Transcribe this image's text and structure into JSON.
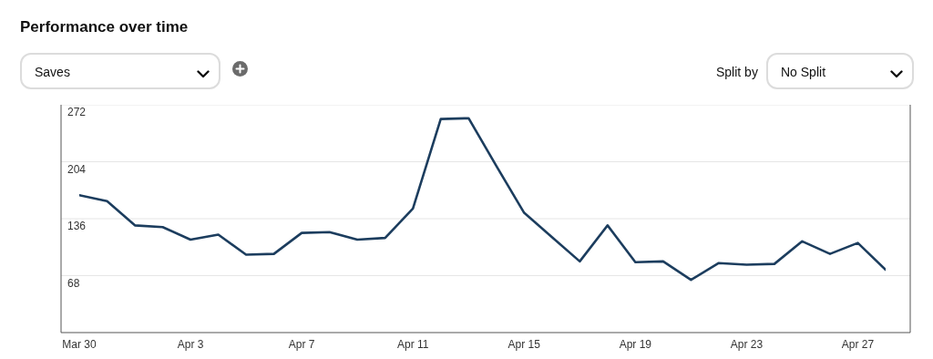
{
  "chart_data": {
    "type": "line",
    "title": "Performance over time",
    "ylabel": "Saves",
    "annotations": [
      "Split by",
      "No Split"
    ],
    "categories": [
      "Mar 30",
      null,
      null,
      null,
      "Apr 3",
      null,
      null,
      null,
      "Apr 7",
      null,
      null,
      null,
      "Apr 11",
      null,
      null,
      null,
      "Apr 15",
      null,
      null,
      null,
      "Apr 19",
      null,
      null,
      null,
      "Apr 23",
      null,
      null,
      null,
      "Apr 27",
      null
    ],
    "series": [
      {
        "color": "#1c3d5e",
        "values": [
          164,
          157,
          128,
          126,
          111,
          117,
          93,
          94,
          119,
          120,
          111,
          113,
          148,
          255,
          256,
          199,
          143,
          114,
          85,
          128,
          84,
          85,
          63,
          83,
          81,
          82,
          109,
          94,
          107,
          75
        ]
      }
    ],
    "ylim": [
      0,
      272
    ],
    "yticks": [
      68,
      136,
      204,
      272
    ],
    "grid": "y",
    "marker": "none",
    "line_style": "solid"
  }
}
